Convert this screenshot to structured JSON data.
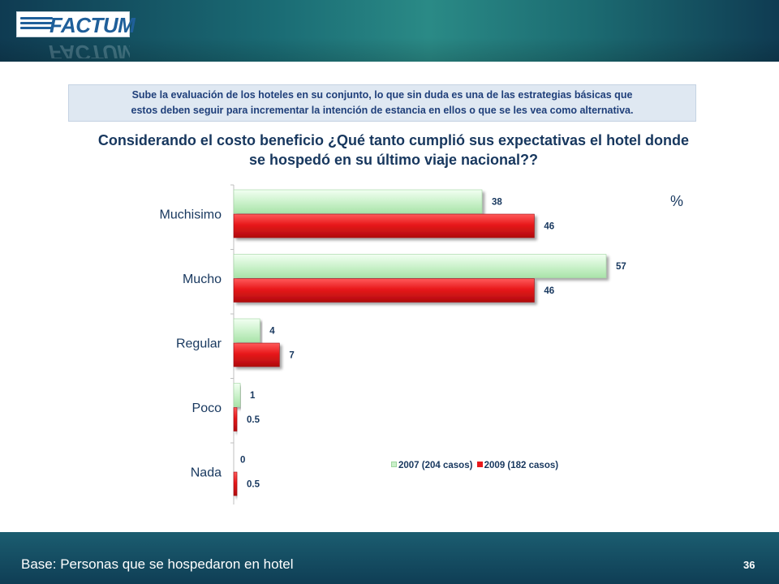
{
  "header": {
    "logo_text": "FACTUM",
    "logo_subtext": ""
  },
  "note": {
    "line1": "Sube la evaluación de los hoteles en su conjunto,  lo que sin duda es una de las estrategias básicas que",
    "line2": "estos deben seguir para incrementar la intención de estancia en ellos o que se les vea como alternativa."
  },
  "question": {
    "line1": "Considerando el costo beneficio ¿Qué tanto cumplió sus expectativas el hotel donde",
    "line2": "se hospedó en su último viaje nacional??"
  },
  "chart_data": {
    "type": "bar",
    "orientation": "horizontal",
    "categories": [
      "Muchisimo",
      "Mucho",
      "Regular",
      "Poco",
      "Nada"
    ],
    "series": [
      {
        "name": "2007 (204 casos)",
        "values": [
          38,
          57,
          4,
          1,
          0
        ],
        "labels": [
          "38",
          "57",
          "4",
          "1",
          "0"
        ],
        "color": "#c9f0c9"
      },
      {
        "name": "2009 (182 casos)",
        "values": [
          46,
          46,
          7,
          0.5,
          0.5
        ],
        "labels": [
          "46",
          "46",
          "7",
          "0.5",
          "0.5"
        ],
        "color": "#e8191b"
      }
    ],
    "unit_label": "%",
    "xlim": [
      0,
      70
    ],
    "grid": false,
    "legend_position": "bottom-right"
  },
  "footer": {
    "base_text": "Base: Personas que se hospedaron en hotel",
    "page_number": "36"
  }
}
